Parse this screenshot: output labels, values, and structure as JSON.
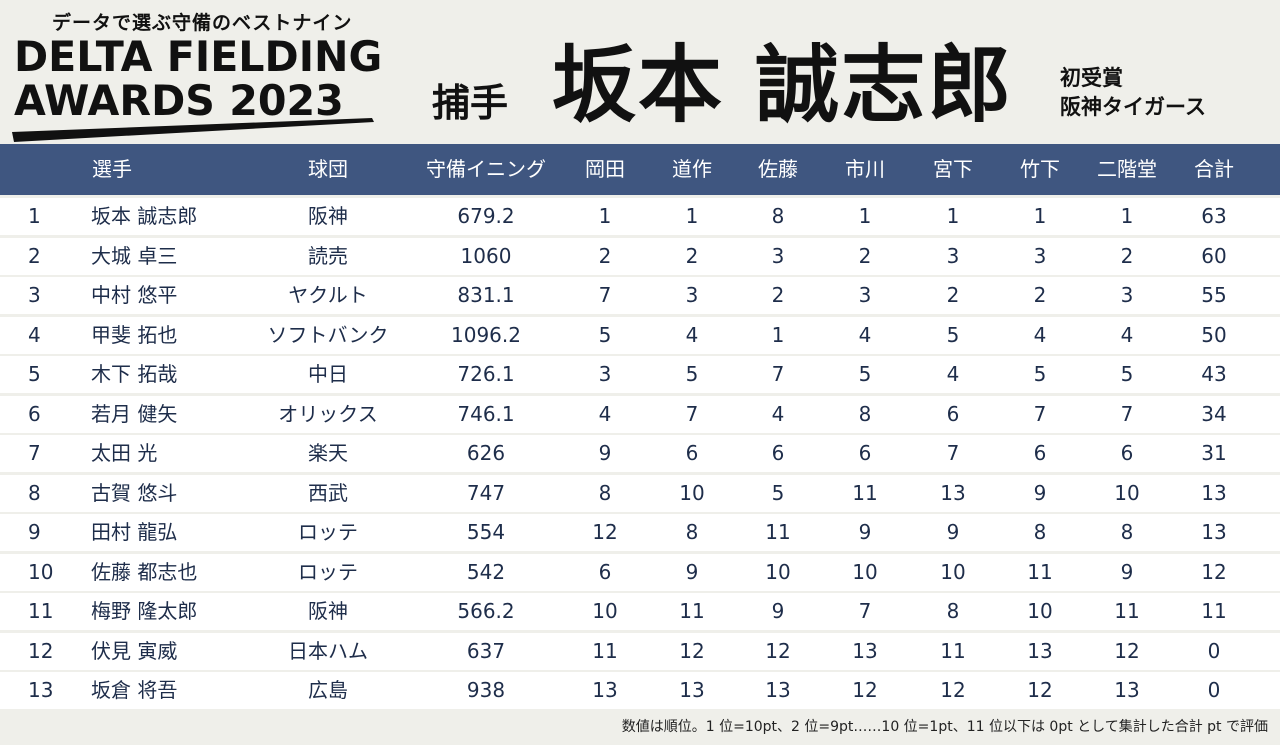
{
  "logo": {
    "tagline": "データで選ぶ守備のベストナイン",
    "line1": "DELTA FIELDING",
    "line2": "AWARDS 2023"
  },
  "position": "捕手",
  "player_name": "坂本 誠志郎",
  "award_note": {
    "line1": "初受賞",
    "line2": "阪神タイガース"
  },
  "columns": [
    "選手",
    "球団",
    "守備イニング",
    "岡田",
    "道作",
    "佐藤",
    "市川",
    "宮下",
    "竹下",
    "二階堂",
    "合計"
  ],
  "rows": [
    {
      "rank": "1",
      "name": "坂本 誠志郎",
      "team": "阪神",
      "innings": "679.2",
      "okada": "1",
      "dosaku": "1",
      "sato": "8",
      "ichikawa": "1",
      "miyashita": "1",
      "takeshita": "1",
      "nikaido": "1",
      "total": "63"
    },
    {
      "rank": "2",
      "name": "大城 卓三",
      "team": "読売",
      "innings": "1060",
      "okada": "2",
      "dosaku": "2",
      "sato": "3",
      "ichikawa": "2",
      "miyashita": "3",
      "takeshita": "3",
      "nikaido": "2",
      "total": "60"
    },
    {
      "rank": "3",
      "name": "中村 悠平",
      "team": "ヤクルト",
      "innings": "831.1",
      "okada": "7",
      "dosaku": "3",
      "sato": "2",
      "ichikawa": "3",
      "miyashita": "2",
      "takeshita": "2",
      "nikaido": "3",
      "total": "55"
    },
    {
      "rank": "4",
      "name": "甲斐 拓也",
      "team": "ソフトバンク",
      "innings": "1096.2",
      "okada": "5",
      "dosaku": "4",
      "sato": "1",
      "ichikawa": "4",
      "miyashita": "5",
      "takeshita": "4",
      "nikaido": "4",
      "total": "50"
    },
    {
      "rank": "5",
      "name": "木下 拓哉",
      "team": "中日",
      "innings": "726.1",
      "okada": "3",
      "dosaku": "5",
      "sato": "7",
      "ichikawa": "5",
      "miyashita": "4",
      "takeshita": "5",
      "nikaido": "5",
      "total": "43"
    },
    {
      "rank": "6",
      "name": "若月 健矢",
      "team": "オリックス",
      "innings": "746.1",
      "okada": "4",
      "dosaku": "7",
      "sato": "4",
      "ichikawa": "8",
      "miyashita": "6",
      "takeshita": "7",
      "nikaido": "7",
      "total": "34"
    },
    {
      "rank": "7",
      "name": "太田 光",
      "team": "楽天",
      "innings": "626",
      "okada": "9",
      "dosaku": "6",
      "sato": "6",
      "ichikawa": "6",
      "miyashita": "7",
      "takeshita": "6",
      "nikaido": "6",
      "total": "31"
    },
    {
      "rank": "8",
      "name": "古賀 悠斗",
      "team": "西武",
      "innings": "747",
      "okada": "8",
      "dosaku": "10",
      "sato": "5",
      "ichikawa": "11",
      "miyashita": "13",
      "takeshita": "9",
      "nikaido": "10",
      "total": "13"
    },
    {
      "rank": "9",
      "name": "田村 龍弘",
      "team": "ロッテ",
      "innings": "554",
      "okada": "12",
      "dosaku": "8",
      "sato": "11",
      "ichikawa": "9",
      "miyashita": "9",
      "takeshita": "8",
      "nikaido": "8",
      "total": "13"
    },
    {
      "rank": "10",
      "name": "佐藤 都志也",
      "team": "ロッテ",
      "innings": "542",
      "okada": "6",
      "dosaku": "9",
      "sato": "10",
      "ichikawa": "10",
      "miyashita": "10",
      "takeshita": "11",
      "nikaido": "9",
      "total": "12"
    },
    {
      "rank": "11",
      "name": "梅野 隆太郎",
      "team": "阪神",
      "innings": "566.2",
      "okada": "10",
      "dosaku": "11",
      "sato": "9",
      "ichikawa": "7",
      "miyashita": "8",
      "takeshita": "10",
      "nikaido": "11",
      "total": "11"
    },
    {
      "rank": "12",
      "name": "伏見 寅威",
      "team": "日本ハム",
      "innings": "637",
      "okada": "11",
      "dosaku": "12",
      "sato": "12",
      "ichikawa": "13",
      "miyashita": "11",
      "takeshita": "13",
      "nikaido": "12",
      "total": "0"
    },
    {
      "rank": "13",
      "name": "坂倉 将吾",
      "team": "広島",
      "innings": "938",
      "okada": "13",
      "dosaku": "13",
      "sato": "13",
      "ichikawa": "12",
      "miyashita": "12",
      "takeshita": "12",
      "nikaido": "13",
      "total": "0"
    }
  ],
  "footnote": "数値は順位。1 位=10pt、2 位=9pt……10 位=1pt、11 位以下は 0pt として集計した合計 pt で評価",
  "colors": {
    "header_bg": "#3f5680",
    "page_bg": "#efefea",
    "row_bg": "#ffffff",
    "text": "#1e2d4a"
  }
}
